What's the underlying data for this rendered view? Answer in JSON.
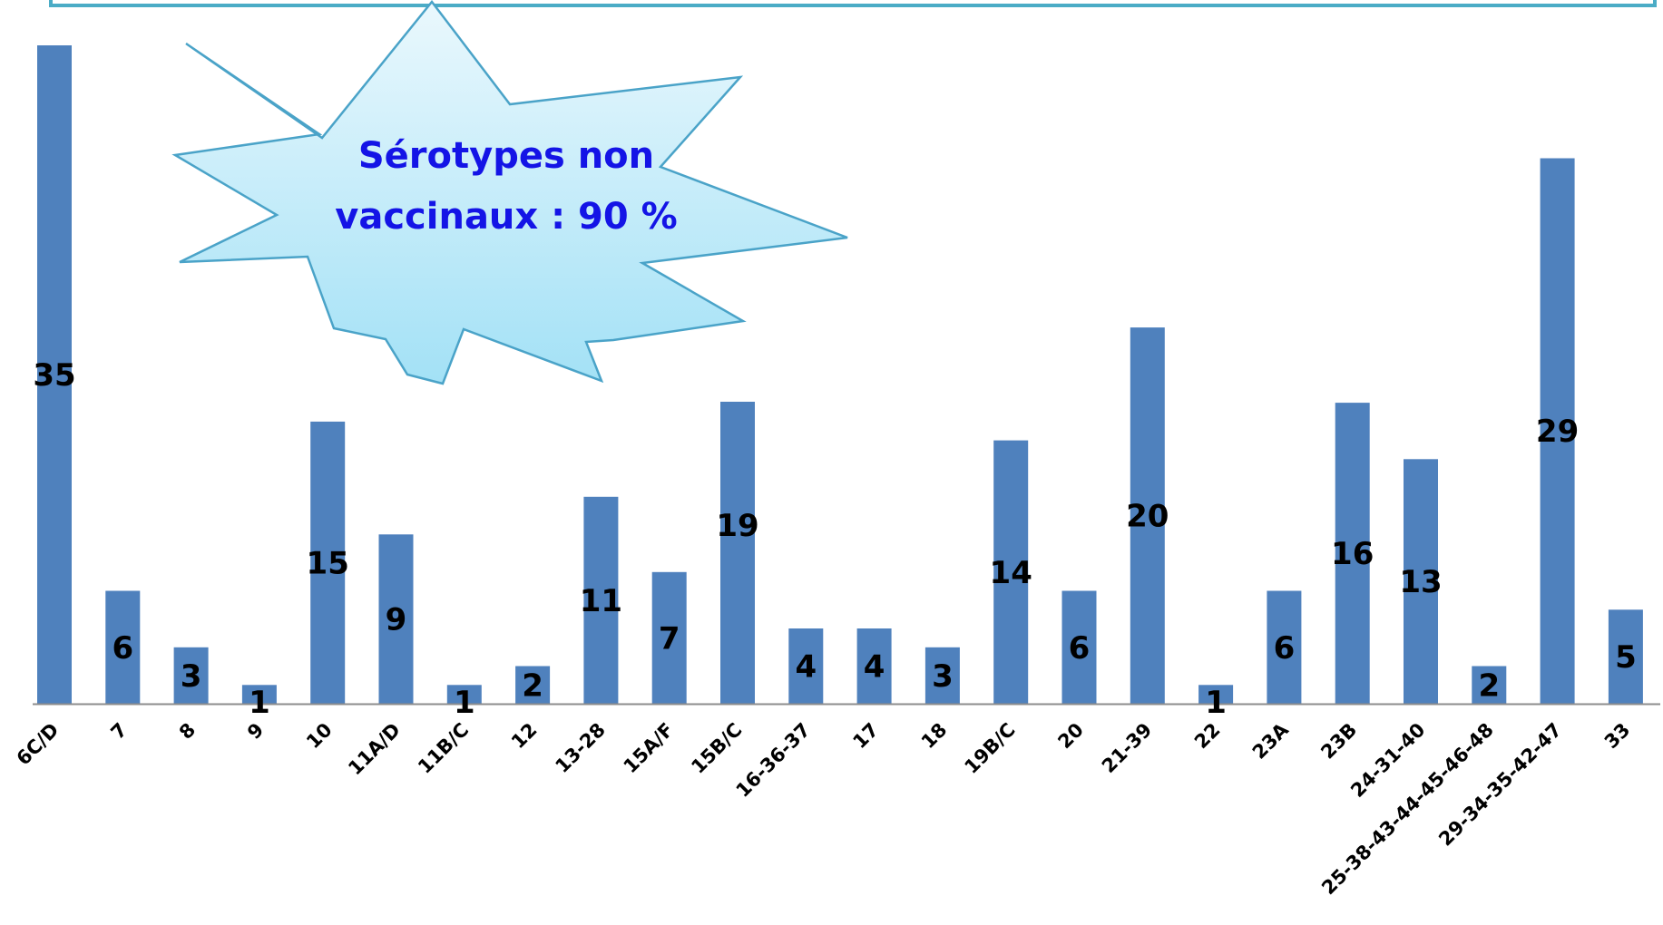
{
  "chart_data": {
    "type": "bar",
    "title": "",
    "xlabel": "",
    "ylabel": "",
    "ylim": [
      0,
      35
    ],
    "grid": false,
    "legend": "none",
    "categories": [
      "6C/D",
      "7",
      "8",
      "9",
      "10",
      "11A/D",
      "11B/C",
      "12",
      "13-28",
      "15A/F",
      "15B/C",
      "16-36-37",
      "17",
      "18",
      "19B/C",
      "20",
      "21-39",
      "22",
      "23A",
      "23B",
      "24-31-40",
      "25-38-43-44-45-46-48",
      "29-34-35-42-47",
      "33"
    ],
    "series": [
      {
        "values": [
          35,
          6,
          3,
          1,
          15,
          9,
          1,
          2,
          11,
          7,
          19,
          4,
          4,
          3,
          14,
          6,
          20,
          1,
          6,
          16,
          13,
          2,
          29,
          5
        ]
      }
    ],
    "colors": {
      "bar": "#4f81bd",
      "axis": "#8c8c8c",
      "frame": "#4bacc6",
      "callout_fill_top": "#eaf8fd",
      "callout_fill_bottom": "#a3e1f6",
      "callout_stroke": "#4aa3c8",
      "callout_text": "#1414e6"
    },
    "annotations": [
      {
        "lines": [
          "Sérotypes non",
          "vaccinaux : 90 %"
        ]
      }
    ]
  }
}
